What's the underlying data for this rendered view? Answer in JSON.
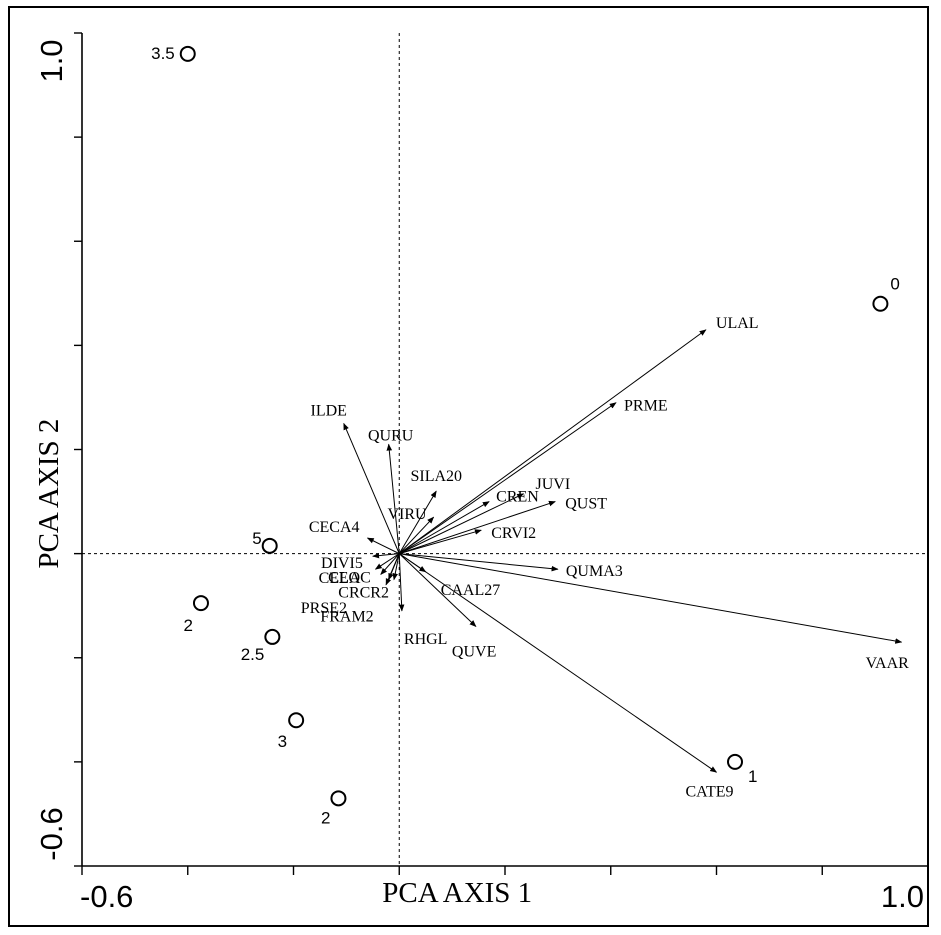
{
  "chart_data": {
    "type": "scatter",
    "subtype": "pca-biplot",
    "xlabel": "PCA AXIS 1",
    "ylabel": "PCA AXIS 2",
    "xlim": [
      -0.6,
      1.0
    ],
    "ylim": [
      -0.6,
      1.0
    ],
    "x_tick_labels": [
      {
        "value": -0.6,
        "label": "-0.6"
      },
      {
        "value": 1.0,
        "label": "1.0"
      }
    ],
    "y_tick_labels": [
      {
        "value": -0.6,
        "label": "-0.6"
      },
      {
        "value": 1.0,
        "label": "1.0"
      }
    ],
    "x_ticks": [
      -0.4,
      -0.2,
      0.0,
      0.2,
      0.4,
      0.6,
      0.8
    ],
    "y_ticks": [
      -0.4,
      -0.2,
      0.0,
      0.2,
      0.4,
      0.6,
      0.8
    ],
    "reference_lines": {
      "x": 0,
      "y": 0,
      "style": "dotted"
    },
    "sites": [
      {
        "label": "3.5",
        "x": -0.4,
        "y": 0.96
      },
      {
        "label": "0",
        "x": 0.91,
        "y": 0.48
      },
      {
        "label": "5",
        "x": -0.245,
        "y": 0.015
      },
      {
        "label": "2",
        "x": -0.375,
        "y": -0.095
      },
      {
        "label": "2.5",
        "x": -0.24,
        "y": -0.16
      },
      {
        "label": "3",
        "x": -0.195,
        "y": -0.32
      },
      {
        "label": "2",
        "x": -0.115,
        "y": -0.47
      },
      {
        "label": "1",
        "x": 0.635,
        "y": -0.4
      }
    ],
    "species_vectors": [
      {
        "label": "ULAL",
        "x": 0.58,
        "y": 0.43
      },
      {
        "label": "PRME",
        "x": 0.41,
        "y": 0.29
      },
      {
        "label": "ILDE",
        "x": -0.105,
        "y": 0.25
      },
      {
        "label": "QURU",
        "x": -0.02,
        "y": 0.21
      },
      {
        "label": "SILA20",
        "x": 0.07,
        "y": 0.12
      },
      {
        "label": "JUVI",
        "x": 0.235,
        "y": 0.115
      },
      {
        "label": "VIRU",
        "x": 0.065,
        "y": 0.07
      },
      {
        "label": "CREN",
        "x": 0.17,
        "y": 0.1
      },
      {
        "label": "QUST",
        "x": 0.295,
        "y": 0.1
      },
      {
        "label": "CRVI2",
        "x": 0.155,
        "y": 0.045
      },
      {
        "label": "CECA4",
        "x": -0.06,
        "y": 0.03
      },
      {
        "label": "DIVI5",
        "x": -0.05,
        "y": -0.005
      },
      {
        "label": "QUMA3",
        "x": 0.3,
        "y": -0.03
      },
      {
        "label": "CAAL27",
        "x": 0.05,
        "y": -0.035
      },
      {
        "label": "CELA",
        "x": -0.045,
        "y": -0.03
      },
      {
        "label": "CEOC",
        "x": -0.035,
        "y": -0.04
      },
      {
        "label": "CRCR2",
        "x": -0.01,
        "y": -0.05
      },
      {
        "label": "PRSE2",
        "x": -0.025,
        "y": -0.06
      },
      {
        "label": "FRAM2",
        "x": -0.02,
        "y": -0.05
      },
      {
        "label": "RHGL",
        "x": 0.005,
        "y": -0.11
      },
      {
        "label": "QUVE",
        "x": 0.145,
        "y": -0.14
      },
      {
        "label": "VAAR",
        "x": 0.95,
        "y": -0.17
      },
      {
        "label": "CATE9",
        "x": 0.6,
        "y": -0.42
      }
    ]
  }
}
